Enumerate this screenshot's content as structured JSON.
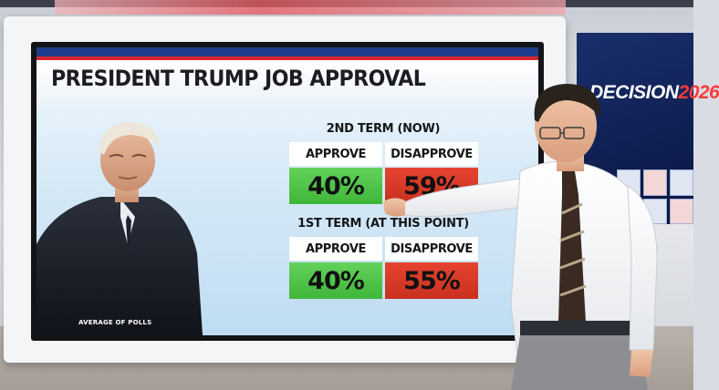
{
  "wall_screen": {
    "brand_prefix": "DECISION",
    "brand_year": "2026"
  },
  "graphic": {
    "title": "PRESIDENT TRUMP JOB APPROVAL",
    "caption": "AVERAGE OF POLLS",
    "terms": [
      {
        "label": "2ND TERM (NOW)",
        "approve_label": "APPROVE",
        "approve_value": "40%",
        "disapprove_label": "DISAPPROVE",
        "disapprove_value": "59%"
      },
      {
        "label": "1ST TERM (AT THIS POINT)",
        "approve_label": "APPROVE",
        "approve_value": "40%",
        "disapprove_label": "DISAPPROVE",
        "disapprove_value": "55%"
      }
    ]
  },
  "colors": {
    "approve_green": "#4cc245",
    "disapprove_red": "#d33a26",
    "title_bar_blue": "#1f3d8a",
    "accent_red": "#d9252b"
  }
}
